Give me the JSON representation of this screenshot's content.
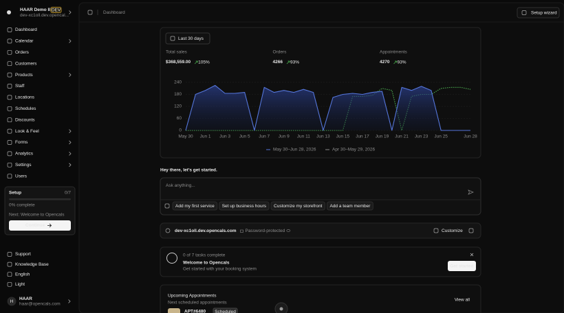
{
  "sidebar": {
    "workspace": "HAAR Demo II",
    "badge": "DEV",
    "domain": "dev-xc1oll.dev.opencal...",
    "nav": [
      {
        "label": "Dashboard"
      },
      {
        "label": "Calendar",
        "expandable": true
      },
      {
        "label": "Orders"
      },
      {
        "label": "Customers"
      },
      {
        "label": "Products",
        "expandable": true
      },
      {
        "label": "Staff"
      },
      {
        "label": "Locations"
      },
      {
        "label": "Schedules"
      },
      {
        "label": "Discounts"
      },
      {
        "label": "Look & Feel",
        "expandable": true
      },
      {
        "label": "Forms",
        "expandable": true
      },
      {
        "label": "Analytics",
        "expandable": true
      },
      {
        "label": "Settings",
        "expandable": true
      },
      {
        "label": "Users"
      }
    ],
    "setup": {
      "title": "Setup",
      "progress": "0/7",
      "percent_label": "0% complete",
      "next": "Next: Welcome to Opencals",
      "button": "Continue"
    },
    "footer_links": [
      "Support",
      "Knowledge Base",
      "English",
      "Light"
    ],
    "user": {
      "initial": "H",
      "name": "HAAR",
      "email": "haar@opencals.com"
    }
  },
  "topbar": {
    "breadcrumb": "Dashboard",
    "button": "Setup wizard"
  },
  "stats": {
    "range_button": "Last 30 days",
    "items": [
      {
        "label": "Total sales",
        "value": "$368,559.00",
        "change": "105%"
      },
      {
        "label": "Orders",
        "value": "4266",
        "change": "93%"
      },
      {
        "label": "Appointments",
        "value": "4270",
        "change": "93%"
      }
    ]
  },
  "chart_data": {
    "type": "line",
    "categories": [
      "May 30",
      null,
      "Jun 1",
      null,
      "Jun 3",
      null,
      "Jun 5",
      null,
      "Jun 7",
      null,
      "Jun 9",
      null,
      "Jun 11",
      null,
      "Jun 13",
      null,
      "Jun 15",
      null,
      "Jun 17",
      null,
      "Jun 19",
      null,
      "Jun 21",
      null,
      "Jun 23",
      null,
      "Jun 25",
      null,
      null,
      "Jun 28"
    ],
    "series": [
      {
        "name": "May 30–Jun 28, 2026",
        "color": "#5576db",
        "area": true,
        "values": [
          0,
          180,
          200,
          225,
          185,
          185,
          190,
          0,
          215,
          190,
          200,
          190,
          205,
          190,
          0,
          165,
          180,
          185,
          180,
          190,
          195,
          0,
          215,
          200,
          220,
          200,
          0,
          0,
          0,
          0
        ]
      },
      {
        "name": "Apr 30–May 29, 2026",
        "color": "#4caf50",
        "dashed": true,
        "values": [
          0,
          0,
          0,
          0,
          0,
          0,
          0,
          0,
          0,
          0,
          0,
          0,
          0,
          0,
          0,
          0,
          0,
          170,
          170,
          175,
          210,
          200,
          0,
          170,
          180,
          180,
          210,
          215,
          215,
          205
        ]
      }
    ],
    "ylim": [
      0,
      240
    ],
    "yticks": [
      0,
      60,
      120,
      180,
      240
    ],
    "grid": true
  },
  "prompt": {
    "title": "Hey there, let's get started.",
    "placeholder": "Ask anything...",
    "chips": [
      "Add my first service",
      "Set up business hours",
      "Customize my storefront",
      "Add a team member"
    ]
  },
  "domain_bar": {
    "domain": "dev-xc1oll.dev.opencals.com",
    "status": "Password-protected",
    "button": "Customize"
  },
  "tasks": {
    "progress": "0 of 7 tasks complete",
    "title": "Welcome to Opencals",
    "subtitle": "Get started with your booking system",
    "button": "Get started"
  },
  "upcoming": {
    "title": "Upcoming Appointments",
    "subtitle": "Next scheduled appointments",
    "button": "View all",
    "first_id": "APT#6480",
    "first_status": "Scheduled"
  }
}
